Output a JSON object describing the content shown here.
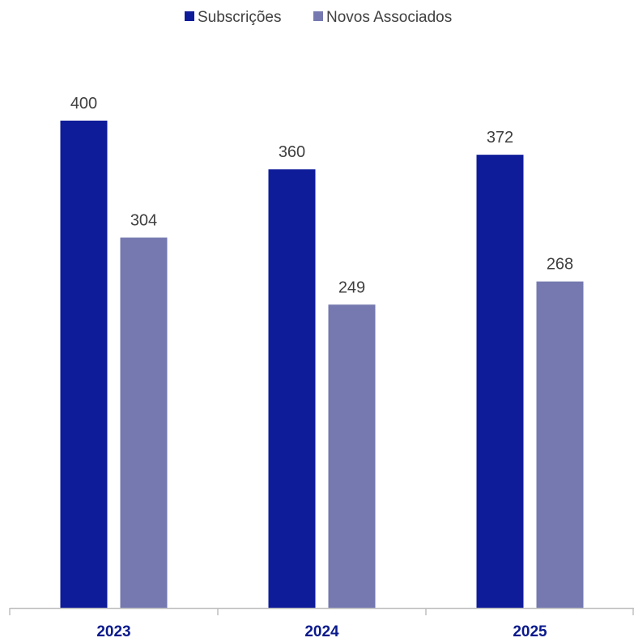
{
  "chart_data": {
    "type": "bar",
    "categories": [
      "2023",
      "2024",
      "2025"
    ],
    "series": [
      {
        "name": "Subscrições",
        "values": [
          400,
          360,
          372
        ],
        "color": "#0f1c99"
      },
      {
        "name": "Novos Associados",
        "values": [
          304,
          249,
          268
        ],
        "color": "#7579b0"
      }
    ],
    "ylim": [
      0,
      400
    ],
    "legend_position": "top-center",
    "grid": false,
    "axis_color": "#bfbfbf",
    "category_label_color": "#0a1a8c",
    "value_label_color": "#404040"
  }
}
